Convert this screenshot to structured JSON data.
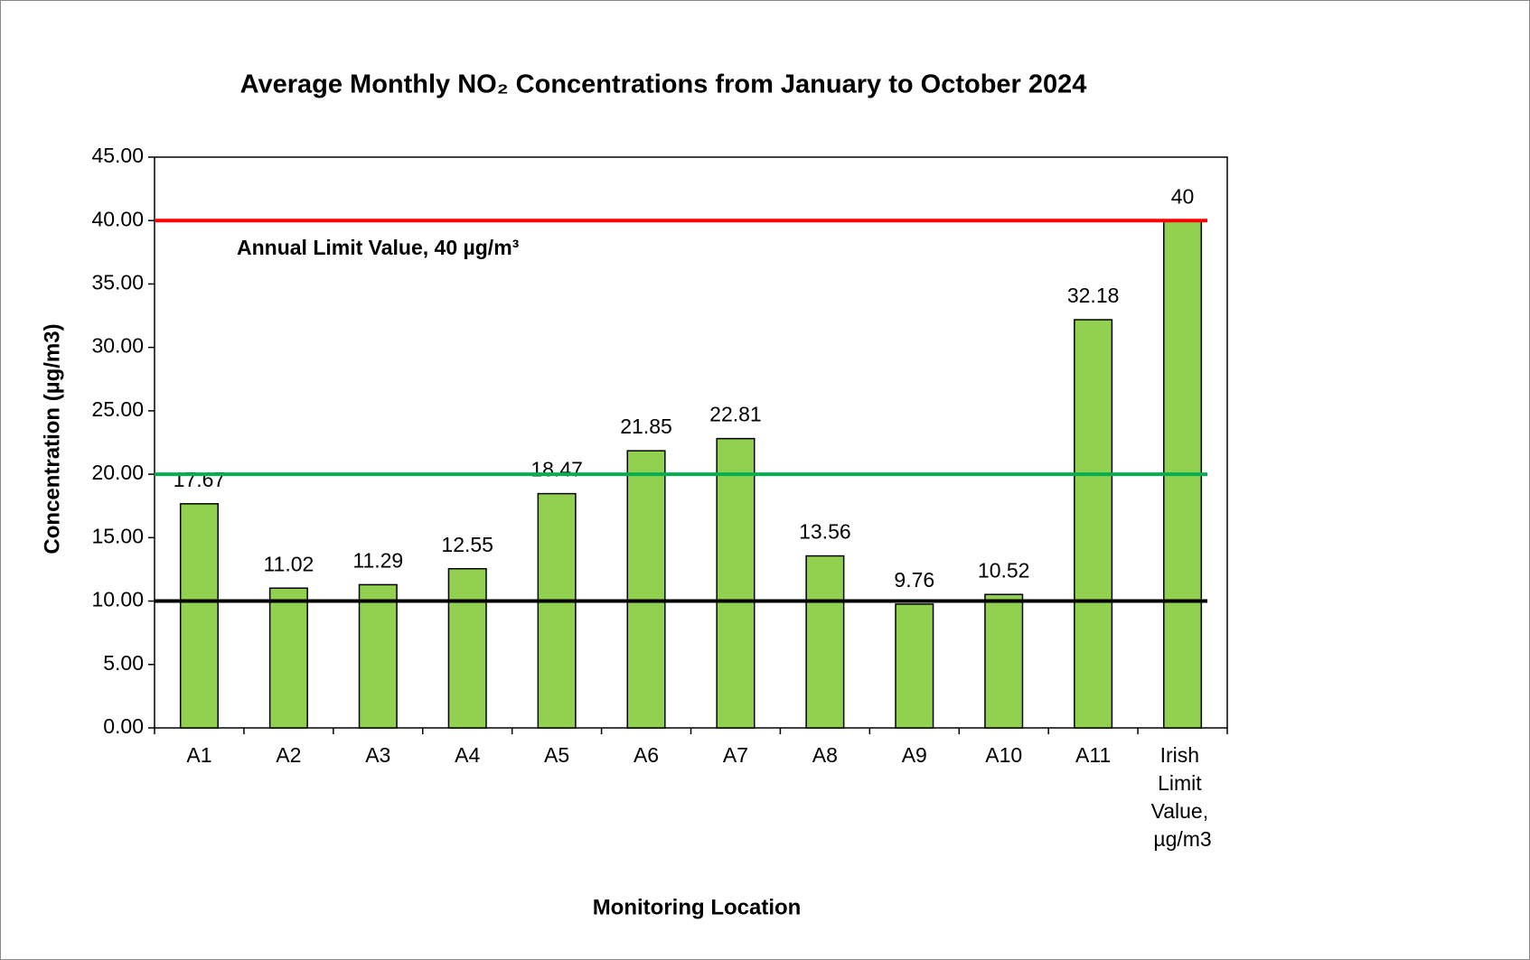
{
  "chart_data": {
    "type": "bar",
    "title": "Average Monthly NO₂ Concentrations from January to October 2024",
    "xlabel": "Monitoring Location",
    "ylabel": "Concentration (µg/m3)",
    "annotation": "Annual Limit Value, 40 µg/m³",
    "categories": [
      "A1",
      "A2",
      "A3",
      "A4",
      "A5",
      "A6",
      "A7",
      "A8",
      "A9",
      "A10",
      "A11",
      "Irish Limit Value, µg/m3"
    ],
    "values": [
      17.67,
      11.02,
      11.29,
      12.55,
      18.47,
      21.85,
      22.81,
      13.56,
      9.76,
      10.52,
      32.18,
      40
    ],
    "color": "#92d050",
    "ylim": [
      0,
      45
    ],
    "yticks": [
      {
        "value": 0,
        "label": "0.00"
      },
      {
        "value": 5,
        "label": "5.00"
      },
      {
        "value": 10,
        "label": "10.00"
      },
      {
        "value": 15,
        "label": "15.00"
      },
      {
        "value": 20,
        "label": "20.00"
      },
      {
        "value": 25,
        "label": "25.00"
      },
      {
        "value": 30,
        "label": "30.00"
      },
      {
        "value": 35,
        "label": "35.00"
      },
      {
        "value": 40,
        "label": "40.00"
      },
      {
        "value": 45,
        "label": "45.00"
      }
    ],
    "reference_lines": [
      {
        "value": 40,
        "color": "#ff0000"
      },
      {
        "value": 20,
        "color": "#00b050"
      },
      {
        "value": 10,
        "color": "#000000"
      }
    ]
  }
}
